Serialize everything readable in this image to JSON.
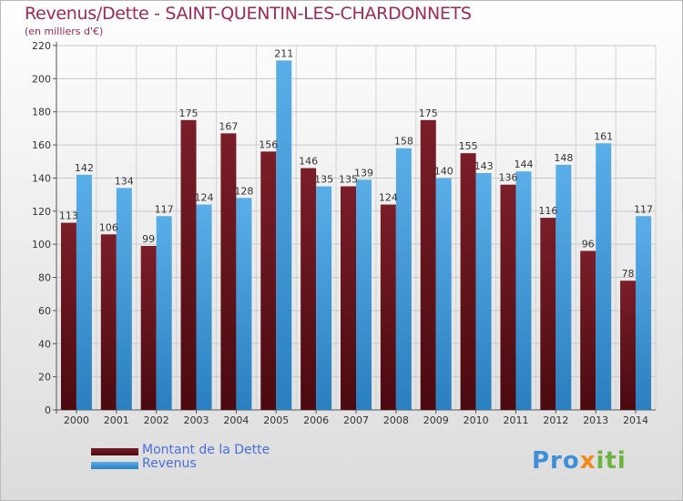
{
  "header": {
    "title": "Revenus/Dette - SAINT-QUENTIN-LES-CHARDONNETS",
    "subtitle": "(en milliers d'€)"
  },
  "legend": {
    "debt_label": "Montant de la Dette",
    "revenue_label": "Revenus"
  },
  "logo": {
    "text_part1": "Pro",
    "text_part2": "x",
    "text_part3": "iti"
  },
  "colors": {
    "debt_top": "#7a1e28",
    "debt_bottom": "#4a0a10",
    "revenue_top": "#5aaee8",
    "revenue_bottom": "#2a7fc0",
    "title": "#a0285a",
    "legend_text": "#4a6ee0"
  },
  "chart_data": {
    "type": "bar",
    "title": "Revenus/Dette - SAINT-QUENTIN-LES-CHARDONNETS",
    "ylabel": "(en milliers d'€)",
    "xlabel": "",
    "ylim": [
      0,
      220
    ],
    "yticks": [
      0,
      20,
      40,
      60,
      80,
      100,
      120,
      140,
      160,
      180,
      200,
      220
    ],
    "grid": true,
    "legend_position": "bottom-left",
    "categories": [
      "2000",
      "2001",
      "2002",
      "2003",
      "2004",
      "2005",
      "2006",
      "2007",
      "2008",
      "2009",
      "2010",
      "2011",
      "2012",
      "2013",
      "2014"
    ],
    "series": [
      {
        "name": "Montant de la Dette",
        "values": [
          113,
          106,
          99,
          175,
          167,
          156,
          146,
          135,
          124,
          175,
          155,
          136,
          116,
          96,
          78
        ]
      },
      {
        "name": "Revenus",
        "values": [
          142,
          134,
          117,
          124,
          128,
          211,
          135,
          139,
          158,
          140,
          143,
          144,
          148,
          161,
          117
        ]
      }
    ]
  }
}
